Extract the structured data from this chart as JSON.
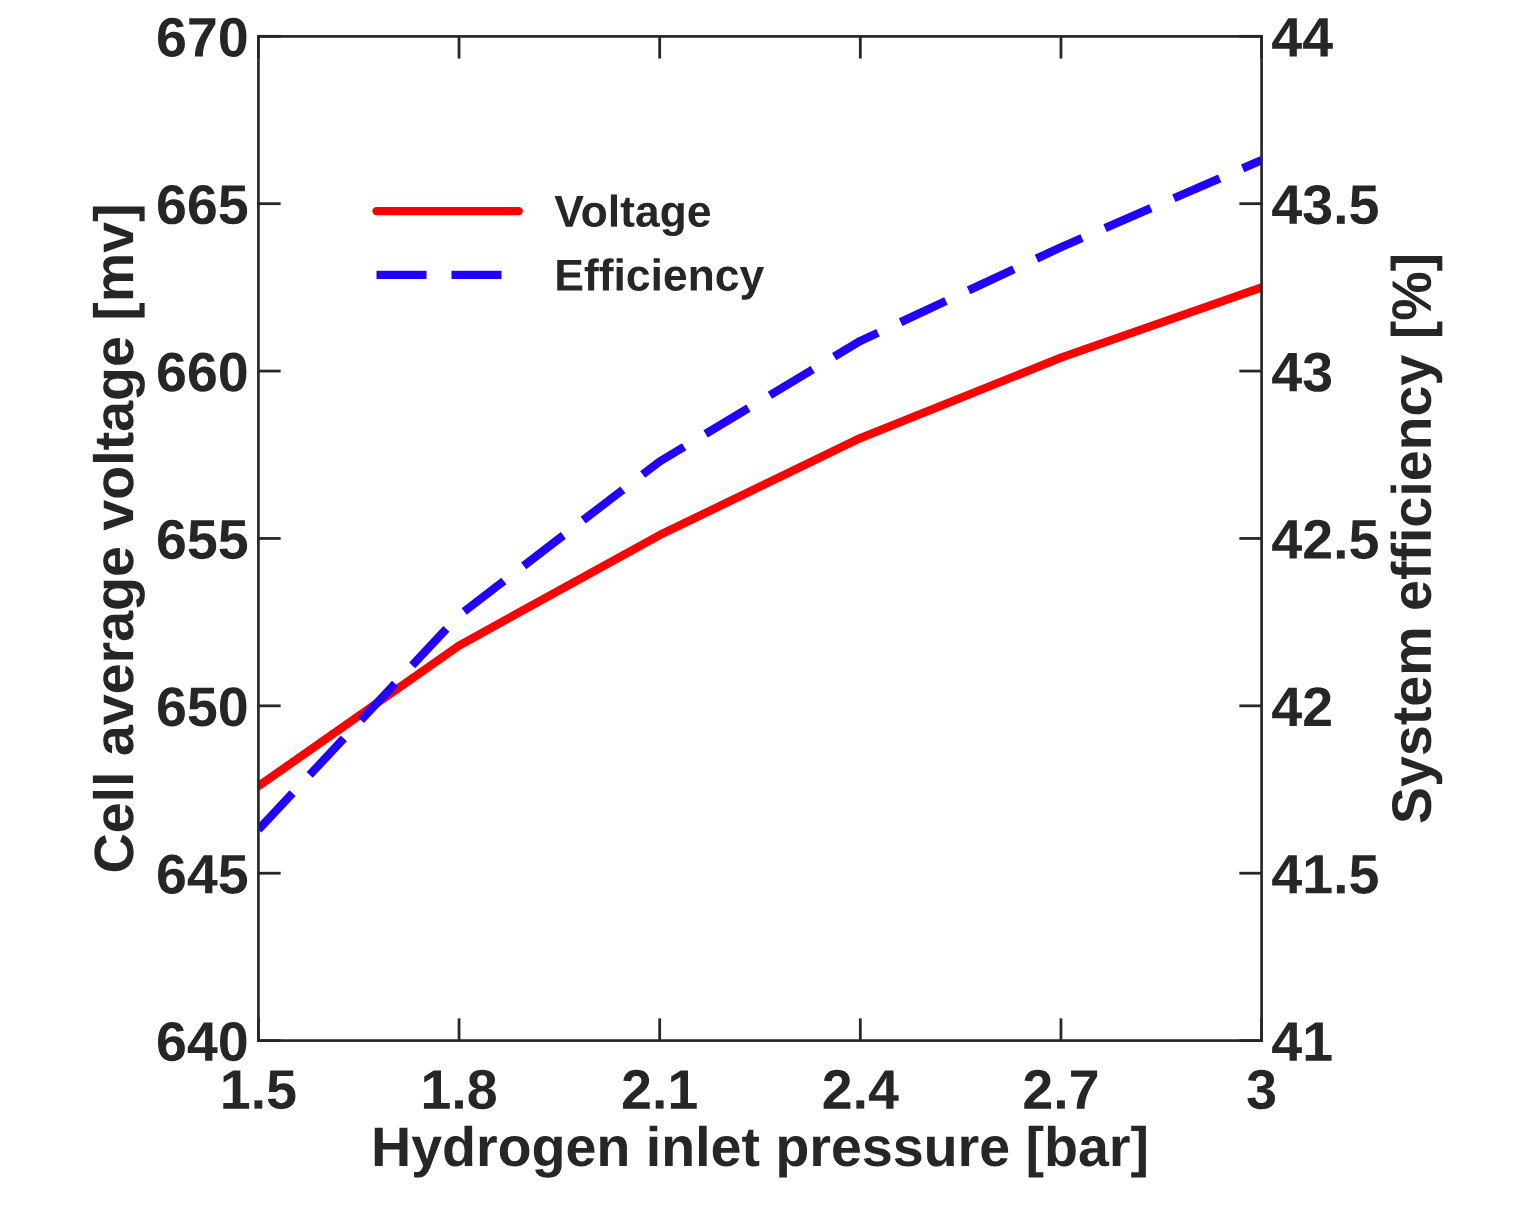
{
  "chart_data": {
    "type": "line",
    "xlabel": "Hydrogen inlet pressure [bar]",
    "ylabel": "Cell average voltage [mv]",
    "y2label": "System efficiency [%]",
    "x": [
      1.5,
      1.8,
      2.1,
      2.4,
      2.7,
      3.0
    ],
    "series": [
      {
        "name": "Voltage",
        "color": "#ff0000",
        "line_style": "solid",
        "values": [
          647.6,
          651.8,
          655.1,
          658.0,
          660.4,
          662.5
        ]
      },
      {
        "name": "Efficiency",
        "color": "#2200ff",
        "line_style": "dashed",
        "axis": "y2",
        "values": [
          41.63,
          42.27,
          42.73,
          43.09,
          43.37,
          43.63
        ]
      }
    ],
    "xlim": [
      1.5,
      3.0
    ],
    "xticks": [
      1.5,
      1.8,
      2.1,
      2.4,
      2.7,
      {
        "value": 3.0,
        "label": "3"
      }
    ],
    "ylim": [
      640,
      670
    ],
    "yticks": [
      640,
      645,
      650,
      655,
      660,
      665,
      670
    ],
    "y2lim": [
      41,
      44
    ],
    "y2ticks": [
      41,
      41.5,
      42,
      42.5,
      43,
      43.5,
      44
    ],
    "legend": "top left",
    "grid": false,
    "marker": "none"
  }
}
